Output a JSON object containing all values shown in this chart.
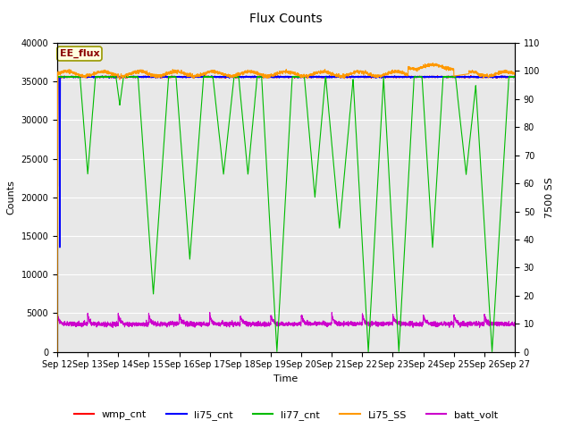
{
  "title": "Flux Counts",
  "ylabel_left": "Counts",
  "ylabel_right": "7500 SS",
  "xlabel": "Time",
  "annotation": "EE_flux",
  "ylim_left": [
    0,
    40000
  ],
  "ylim_right": [
    0,
    110
  ],
  "x_start": 12,
  "x_end": 27,
  "x_ticks": [
    12,
    13,
    14,
    15,
    16,
    17,
    18,
    19,
    20,
    21,
    22,
    23,
    24,
    25,
    26,
    27
  ],
  "x_tick_labels": [
    "Sep 12",
    "Sep 13",
    "Sep 14",
    "Sep 15",
    "Sep 16",
    "Sep 17",
    "Sep 18",
    "Sep 19",
    "Sep 20",
    "Sep 21",
    "Sep 22",
    "Sep 23",
    "Sep 24",
    "Sep 25",
    "Sep 26",
    "Sep 27"
  ],
  "colors": {
    "wmp_cnt": "#ff0000",
    "li75_cnt": "#0000ff",
    "li77_cnt": "#00bb00",
    "Li75_SS": "#ff9900",
    "batt_volt": "#cc00cc"
  },
  "bg_color": "#e8e8e8",
  "fig_bg": "#ffffff",
  "yticks_left": [
    0,
    5000,
    10000,
    15000,
    20000,
    25000,
    30000,
    35000,
    40000
  ],
  "yticks_right": [
    0,
    10,
    20,
    30,
    40,
    50,
    60,
    70,
    80,
    90,
    100,
    110
  ]
}
